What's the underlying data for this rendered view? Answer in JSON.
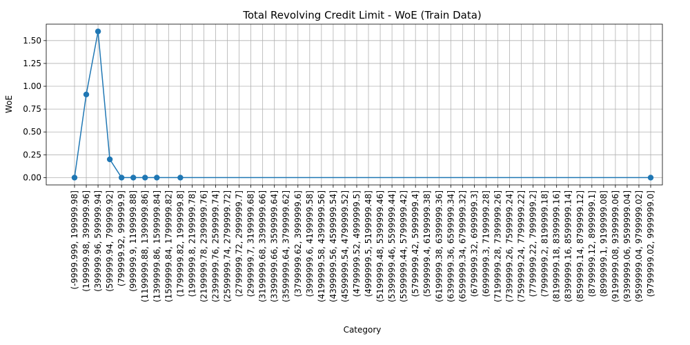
{
  "chart_data": {
    "type": "line",
    "title": "Total Revolving Credit Limit - WoE (Train Data)",
    "xlabel": "Category",
    "ylabel": "WoE",
    "ylim": [
      -0.08,
      1.68
    ],
    "yticks": [
      "0.00",
      "0.25",
      "0.50",
      "0.75",
      "1.00",
      "1.25",
      "1.50"
    ],
    "yticks_values": [
      0,
      0.25,
      0.5,
      0.75,
      1.0,
      1.25,
      1.5
    ],
    "grid": true,
    "color": "#1f77b4",
    "categories": [
      "(-9999.999, 199999.98]",
      "(199999.98, 399999.96]",
      "(399999.96, 599999.94]",
      "(599999.94, 799999.92]",
      "(799999.92, 999999.9]",
      "(999999.9, 1199999.88]",
      "(1199999.88, 1399999.86]",
      "(1399999.86, 1599999.84]",
      "(1599999.84, 1799999.82]",
      "(1799999.82, 1999999.8]",
      "(1999999.8, 2199999.78]",
      "(2199999.78, 2399999.76]",
      "(2399999.76, 2599999.74]",
      "(2599999.74, 2799999.72]",
      "(2799999.72, 2999999.7]",
      "(2999999.7, 3199999.68]",
      "(3199999.68, 3399999.66]",
      "(3399999.66, 3599999.64]",
      "(3599999.64, 3799999.62]",
      "(3799999.62, 3999999.6]",
      "(3999999.6, 4199999.58]",
      "(4199999.58, 4399999.56]",
      "(4399999.56, 4599999.54]",
      "(4599999.54, 4799999.52]",
      "(4799999.52, 4999999.5]",
      "(4999999.5, 5199999.48]",
      "(5199999.48, 5399999.46]",
      "(5399999.46, 5599999.44]",
      "(5599999.44, 5799999.42]",
      "(5799999.42, 5999999.4]",
      "(5999999.4, 6199999.38]",
      "(6199999.38, 6399999.36]",
      "(6399999.36, 6599999.34]",
      "(6599999.34, 6799999.32]",
      "(6799999.32, 6999999.3]",
      "(6999999.3, 7199999.28]",
      "(7199999.28, 7399999.26]",
      "(7399999.26, 7599999.24]",
      "(7599999.24, 7799999.22]",
      "(7799999.22, 7999999.2]",
      "(7999999.2, 8199999.18]",
      "(8199999.18, 8399999.16]",
      "(8399999.16, 8599999.14]",
      "(8599999.14, 8799999.12]",
      "(8799999.12, 8999999.1]",
      "(8999999.1, 9199999.08]",
      "(9199999.08, 9399999.06]",
      "(9399999.06, 9599999.04]",
      "(9599999.04, 9799999.02]",
      "(9799999.02, 9999999.0]"
    ],
    "series": [
      {
        "points": [
          {
            "category": "(-9999.999, 199999.98]",
            "value": 0.0
          },
          {
            "category": "(199999.98, 399999.96]",
            "value": 0.91
          },
          {
            "category": "(399999.96, 599999.94]",
            "value": 1.6
          },
          {
            "category": "(599999.94, 799999.92]",
            "value": 0.2
          },
          {
            "category": "(799999.92, 999999.9]",
            "value": 0.0
          },
          {
            "category": "(999999.9, 1199999.88]",
            "value": 0.0
          },
          {
            "category": "(1199999.88, 1399999.86]",
            "value": 0.0
          },
          {
            "category": "(1399999.86, 1599999.84]",
            "value": 0.0
          },
          {
            "category": "(1799999.82, 1999999.8]",
            "value": 0.0
          },
          {
            "category": "(9799999.02, 9999999.0]",
            "value": 0.0
          }
        ]
      }
    ]
  }
}
